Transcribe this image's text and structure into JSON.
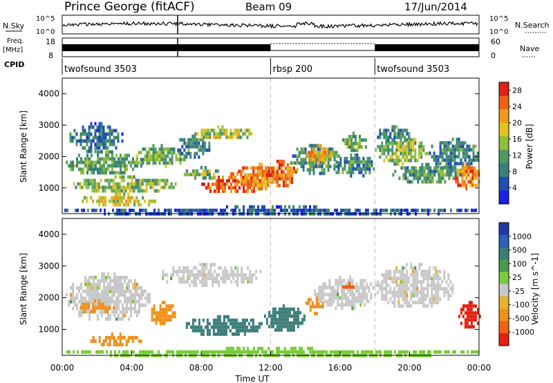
{
  "header": {
    "station": "Prince George (fitACF)",
    "beam": "Beam 09",
    "date": "17/Jun/2014"
  },
  "top_panels": {
    "nsky_label": "N.Sky",
    "nsky_ticks": [
      "10^5",
      "10^0"
    ],
    "nsearch_label": "N.Search",
    "nsearch_ticks": [
      "10^5",
      "10^0"
    ],
    "freq_label": "Freq.",
    "freq_unit": "[MHz]",
    "freq_ticks": [
      "18",
      "8"
    ],
    "nave_label": "Nave",
    "nave_ticks": [
      "60",
      "0"
    ],
    "cpid_label": "CPID",
    "cpid_segments": [
      {
        "name": "twofsound 3503",
        "start_hour": 0,
        "end_hour": 12
      },
      {
        "name": "rbsp 200",
        "start_hour": 12,
        "end_hour": 18
      },
      {
        "name": "twofsound 3503",
        "start_hour": 18,
        "end_hour": 24
      }
    ]
  },
  "colors": {
    "power_scale": [
      "#1f1fe6",
      "#1f4fb0",
      "#3a7f7a",
      "#4e9a62",
      "#8fbf3a",
      "#e6c21f",
      "#f09a1a",
      "#f06018",
      "#e02010"
    ],
    "velocity_scale": [
      "#1f3aa8",
      "#2c5fb5",
      "#3b7d78",
      "#4a9a50",
      "#7ccc3a",
      "#c8c8c8",
      "#e8b22a",
      "#f0901a",
      "#f06010",
      "#e52010"
    ]
  },
  "chart_data": [
    {
      "type": "heatmap",
      "title": "",
      "quantity": "Power",
      "xlabel": "",
      "ylabel": "Slant Range [km]",
      "colorbar_label": "Power [dB]",
      "colorbar_ticks": [
        "4",
        "8",
        "12",
        "16",
        "20",
        "24",
        "28"
      ],
      "colorbar_range": [
        0,
        30
      ],
      "x_ticks": [
        "00:00",
        "04:00",
        "08:00",
        "12:00",
        "16:00",
        "20:00",
        "00:00"
      ],
      "xlim_hours": [
        0,
        24
      ],
      "y_ticks": [
        "1000",
        "2000",
        "3000",
        "4000"
      ],
      "ylim": [
        180,
        4500
      ],
      "dashed_marker_hours": [
        12,
        18
      ],
      "regions": [
        {
          "t0": 0.2,
          "t1": 4.5,
          "r0": 1450,
          "r1": 2200,
          "value": 12
        },
        {
          "t0": 0.3,
          "t1": 3.5,
          "r0": 2200,
          "r1": 3100,
          "value": 8
        },
        {
          "t0": 0.5,
          "t1": 6.5,
          "r0": 900,
          "r1": 1400,
          "value": 14
        },
        {
          "t0": 1.0,
          "t1": 5.5,
          "r0": 450,
          "r1": 850,
          "value": 18
        },
        {
          "t0": 4.0,
          "t1": 7.0,
          "r0": 1700,
          "r1": 2400,
          "value": 13
        },
        {
          "t0": 6.5,
          "t1": 8.5,
          "r0": 2000,
          "r1": 2700,
          "value": 9
        },
        {
          "t0": 7.5,
          "t1": 11.0,
          "r0": 2600,
          "r1": 3000,
          "value": 16
        },
        {
          "t0": 8.0,
          "t1": 11.5,
          "r0": 850,
          "r1": 1500,
          "value": 26
        },
        {
          "t0": 7.0,
          "t1": 9.0,
          "r0": 1300,
          "r1": 1700,
          "value": 13
        },
        {
          "t0": 10.0,
          "t1": 12.5,
          "r0": 1000,
          "r1": 1800,
          "value": 22
        },
        {
          "t0": 11.5,
          "t1": 13.5,
          "r0": 1100,
          "r1": 1900,
          "value": 24
        },
        {
          "t0": 13.0,
          "t1": 16.0,
          "r0": 1500,
          "r1": 2400,
          "value": 10
        },
        {
          "t0": 14.0,
          "t1": 15.5,
          "r0": 1800,
          "r1": 2400,
          "value": 20
        },
        {
          "t0": 16.0,
          "t1": 17.5,
          "r0": 2200,
          "r1": 2800,
          "value": 13
        },
        {
          "t0": 15.5,
          "t1": 18.0,
          "r0": 1400,
          "r1": 2100,
          "value": 9
        },
        {
          "t0": 18.0,
          "t1": 21.0,
          "r0": 1800,
          "r1": 2700,
          "value": 14
        },
        {
          "t0": 18.0,
          "t1": 20.0,
          "r0": 2500,
          "r1": 3000,
          "value": 9
        },
        {
          "t0": 19.0,
          "t1": 23.0,
          "r0": 1200,
          "r1": 1800,
          "value": 11
        },
        {
          "t0": 21.0,
          "t1": 24.0,
          "r0": 1600,
          "r1": 2600,
          "value": 9
        },
        {
          "t0": 22.5,
          "t1": 24.0,
          "r0": 1000,
          "r1": 1800,
          "value": 23
        },
        {
          "t0": 0.0,
          "t1": 24.0,
          "r0": 180,
          "r1": 450,
          "value": 6
        }
      ]
    },
    {
      "type": "heatmap",
      "title": "",
      "quantity": "Velocity",
      "xlabel": "Time UT",
      "ylabel": "Slant Range [km]",
      "colorbar_label": "Velocity [m s^-1]",
      "colorbar_ticks": [
        "1000",
        "500",
        "100",
        "25",
        "-25",
        "-100",
        "-500",
        "-1000"
      ],
      "x_ticks": [
        "00:00",
        "04:00",
        "08:00",
        "12:00",
        "16:00",
        "20:00",
        "00:00"
      ],
      "xlim_hours": [
        0,
        24
      ],
      "y_ticks": [
        "1000",
        "2000",
        "3000",
        "4000"
      ],
      "ylim": [
        180,
        4500
      ],
      "dashed_marker_hours": [
        12,
        18
      ],
      "regions": [
        {
          "t0": 0.2,
          "t1": 5.0,
          "r0": 1300,
          "r1": 2800,
          "value": 0
        },
        {
          "t0": 1.0,
          "t1": 3.0,
          "r0": 1550,
          "r1": 1950,
          "value": -150
        },
        {
          "t0": 1.5,
          "t1": 4.5,
          "r0": 550,
          "r1": 900,
          "value": -200
        },
        {
          "t0": 5.0,
          "t1": 6.5,
          "r0": 1200,
          "r1": 1900,
          "value": -250
        },
        {
          "t0": 5.5,
          "t1": 11.5,
          "r0": 2400,
          "r1": 3100,
          "value": 0
        },
        {
          "t0": 7.0,
          "t1": 11.5,
          "r0": 850,
          "r1": 1450,
          "value": 300
        },
        {
          "t0": 11.5,
          "t1": 14.0,
          "r0": 950,
          "r1": 1800,
          "value": 450
        },
        {
          "t0": 14.0,
          "t1": 15.0,
          "r0": 1550,
          "r1": 2100,
          "value": -250
        },
        {
          "t0": 14.5,
          "t1": 18.0,
          "r0": 1700,
          "r1": 2700,
          "value": 0
        },
        {
          "t0": 16.0,
          "t1": 16.8,
          "r0": 2300,
          "r1": 2500,
          "value": -300
        },
        {
          "t0": 18.0,
          "t1": 22.5,
          "r0": 1700,
          "r1": 3100,
          "value": 0
        },
        {
          "t0": 22.8,
          "t1": 24.0,
          "r0": 1100,
          "r1": 1900,
          "value": -700
        },
        {
          "t0": 0.0,
          "t1": 24.0,
          "r0": 180,
          "r1": 450,
          "value": 40
        }
      ]
    }
  ],
  "xaxis_label": "Time UT"
}
